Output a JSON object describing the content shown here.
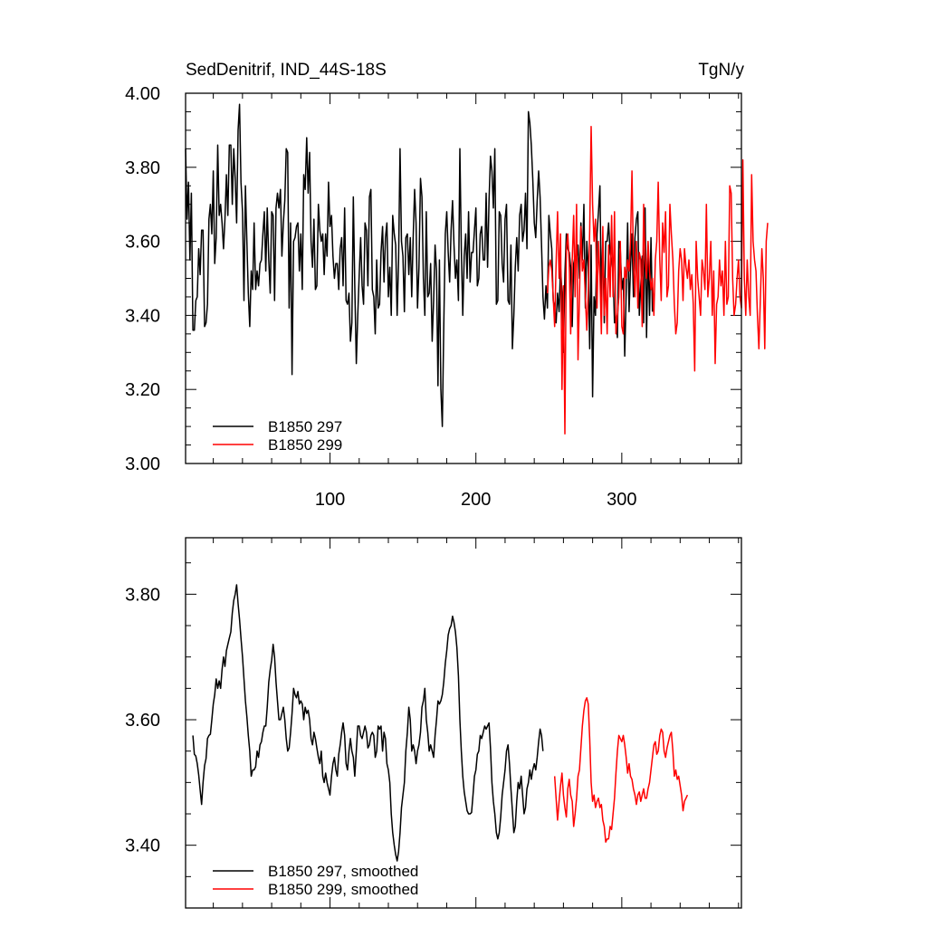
{
  "chart_data": [
    {
      "type": "line",
      "title": "SedDenitrif, IND_44S-18S",
      "units": "TgN/y",
      "xlim": [
        1,
        382
      ],
      "ylim": [
        3.0,
        4.0
      ],
      "x_ticks": [
        100,
        200,
        300
      ],
      "y_ticks": [
        "3.00",
        "3.20",
        "3.40",
        "3.60",
        "3.80",
        "4.00"
      ],
      "legend": [
        "B1850 297",
        "B1850 299"
      ],
      "series": [
        {
          "name": "B1850 297",
          "color": "#000000",
          "x_start": 1,
          "values": [
            3.85,
            3.66,
            3.76,
            3.55,
            3.73,
            3.36,
            3.36,
            3.44,
            3.45,
            3.58,
            3.51,
            3.63,
            3.63,
            3.37,
            3.38,
            3.43,
            3.66,
            3.7,
            3.62,
            3.79,
            3.54,
            3.61,
            3.86,
            3.67,
            3.7,
            3.65,
            3.58,
            3.66,
            3.78,
            3.67,
            3.86,
            3.86,
            3.7,
            3.85,
            3.77,
            3.65,
            3.9,
            3.97,
            3.76,
            3.68,
            3.44,
            3.75,
            3.6,
            3.46,
            3.37,
            3.52,
            3.47,
            3.65,
            3.47,
            3.52,
            3.48,
            3.54,
            3.55,
            3.62,
            3.68,
            3.52,
            3.69,
            3.55,
            3.46,
            3.68,
            3.67,
            3.44,
            3.69,
            3.73,
            3.69,
            3.74,
            3.56,
            3.65,
            3.71,
            3.85,
            3.84,
            3.42,
            3.65,
            3.24,
            3.6,
            3.61,
            3.64,
            3.65,
            3.52,
            3.62,
            3.47,
            3.78,
            3.74,
            3.88,
            3.73,
            3.84,
            3.6,
            3.53,
            3.66,
            3.47,
            3.48,
            3.7,
            3.63,
            3.6,
            3.62,
            3.51,
            3.62,
            3.56,
            3.76,
            3.64,
            3.67,
            3.56,
            3.5,
            3.54,
            3.54,
            3.47,
            3.58,
            3.61,
            3.48,
            3.69,
            3.44,
            3.43,
            3.46,
            3.33,
            3.38,
            3.72,
            3.48,
            3.27,
            3.4,
            3.51,
            3.61,
            3.48,
            3.43,
            3.65,
            3.63,
            3.48,
            3.72,
            3.74,
            3.47,
            3.45,
            3.35,
            3.55,
            3.42,
            3.43,
            3.57,
            3.64,
            3.49,
            3.61,
            3.65,
            3.45,
            3.53,
            3.4,
            3.67,
            3.62,
            3.59,
            3.4,
            3.55,
            3.85,
            3.6,
            3.56,
            3.41,
            3.61,
            3.62,
            3.51,
            3.61,
            3.45,
            3.61,
            3.74,
            3.65,
            3.42,
            3.53,
            3.77,
            3.72,
            3.5,
            3.4,
            3.68,
            3.45,
            3.46,
            3.54,
            3.33,
            3.44,
            3.59,
            3.52,
            3.21,
            3.55,
            3.2,
            3.1,
            3.37,
            3.62,
            3.68,
            3.57,
            3.49,
            3.63,
            3.71,
            3.59,
            3.5,
            3.55,
            3.44,
            3.85,
            3.58,
            3.4,
            3.56,
            3.62,
            3.5,
            3.68,
            3.49,
            3.57,
            3.57,
            3.63,
            3.69,
            3.48,
            3.5,
            3.62,
            3.64,
            3.55,
            3.55,
            3.73,
            3.53,
            3.71,
            3.83,
            3.79,
            3.69,
            3.85,
            3.43,
            3.44,
            3.68,
            3.67,
            3.54,
            3.49,
            3.66,
            3.7,
            3.44,
            3.43,
            3.59,
            3.31,
            3.4,
            3.53,
            3.61,
            3.52,
            3.67,
            3.7,
            3.6,
            3.63,
            3.73,
            3.58,
            3.95,
            3.92,
            3.86,
            3.77,
            3.65,
            3.61,
            3.71,
            3.79,
            3.72,
            3.59,
            3.45,
            3.39,
            3.48,
            3.42,
            3.67,
            3.62,
            3.58,
            3.44,
            3.42,
            3.38,
            3.46,
            3.41,
            3.53,
            3.46,
            3.3,
            3.51,
            3.62,
            3.58,
            3.57,
            3.53,
            3.37,
            3.54,
            3.56,
            3.55,
            3.59,
            3.5,
            3.65,
            3.55,
            3.7,
            3.42,
            3.6,
            3.53,
            3.31,
            3.59,
            3.18,
            3.45,
            3.4,
            3.62,
            3.68,
            3.75,
            3.45,
            3.6,
            3.38,
            3.6,
            3.6,
            3.65,
            3.57,
            3.55,
            3.52,
            3.38,
            3.4,
            3.34,
            3.6,
            3.58,
            3.47,
            3.5,
            3.29,
            3.46,
            3.65,
            3.41,
            3.53,
            3.62,
            3.45,
            3.61,
            3.66,
            3.68,
            3.4,
            3.48,
            3.56,
            3.38,
            3.69,
            3.34,
            3.58,
            3.4,
            3.61,
            3.41
          ]
        },
        {
          "name": "B1850 299",
          "color": "#ff0000",
          "x_start": 249,
          "values": [
            3.46,
            3.53,
            3.55,
            3.52,
            3.45,
            3.37,
            3.54,
            3.68,
            3.5,
            3.62,
            3.2,
            3.48,
            3.08,
            3.58,
            3.62,
            3.54,
            3.35,
            3.55,
            3.67,
            3.45,
            3.7,
            3.28,
            3.45,
            3.64,
            3.52,
            3.55,
            3.45,
            3.36,
            3.46,
            3.63,
            3.91,
            3.7,
            3.6,
            3.66,
            3.42,
            3.6,
            3.51,
            3.35,
            3.64,
            3.4,
            3.5,
            3.35,
            3.59,
            3.45,
            3.67,
            3.45,
            3.68,
            3.35,
            3.4,
            3.45,
            3.6,
            3.37,
            3.35,
            3.53,
            3.5,
            3.55,
            3.52,
            3.6,
            3.79,
            3.55,
            3.45,
            3.6,
            3.42,
            3.57,
            3.55,
            3.37,
            3.7,
            3.55,
            3.5,
            3.6,
            3.52,
            3.47,
            3.5,
            3.4,
            3.55,
            3.6,
            3.76,
            3.55,
            3.44,
            3.65,
            3.57,
            3.68,
            3.45,
            3.48,
            3.7,
            3.62,
            3.55,
            3.43,
            3.35,
            3.38,
            3.52,
            3.58,
            3.55,
            3.44,
            3.58,
            3.53,
            3.5,
            3.55,
            3.47,
            3.51,
            3.43,
            3.25,
            3.6,
            3.5,
            3.45,
            3.4,
            3.55,
            3.52,
            3.47,
            3.7,
            3.45,
            3.5,
            3.6,
            3.4,
            3.52,
            3.27,
            3.43,
            3.45,
            3.55,
            3.48,
            3.52,
            3.4,
            3.6,
            3.43,
            3.45,
            3.75,
            3.73,
            3.5,
            3.4,
            3.43,
            3.5,
            3.55,
            3.45,
            3.42,
            3.82,
            3.5,
            3.4,
            3.55,
            3.45,
            3.4,
            3.78,
            3.6,
            3.55,
            3.52,
            3.4,
            3.31,
            3.45,
            3.58,
            3.5,
            3.31,
            3.6,
            3.65
          ]
        }
      ]
    },
    {
      "type": "line",
      "title": "",
      "xlim": [
        1,
        382
      ],
      "ylim": [
        3.3,
        3.89
      ],
      "y_ticks": [
        "3.40",
        "3.60",
        "3.80"
      ],
      "legend": [
        "B1850 297, smoothed",
        "B1850 299, smoothed"
      ],
      "series": [
        {
          "name": "B1850 297, smoothed",
          "color": "#000000",
          "x_start": 6,
          "values": [
            3.575,
            3.545,
            3.542,
            3.53,
            3.512,
            3.488,
            3.465,
            3.5,
            3.527,
            3.538,
            3.57,
            3.575,
            3.577,
            3.6,
            3.625,
            3.64,
            3.665,
            3.65,
            3.662,
            3.65,
            3.68,
            3.7,
            3.685,
            3.71,
            3.72,
            3.73,
            3.74,
            3.77,
            3.79,
            3.8,
            3.815,
            3.785,
            3.76,
            3.73,
            3.7,
            3.665,
            3.63,
            3.605,
            3.575,
            3.55,
            3.51,
            3.52,
            3.52,
            3.525,
            3.55,
            3.54,
            3.56,
            3.565,
            3.58,
            3.59,
            3.59,
            3.62,
            3.66,
            3.68,
            3.695,
            3.72,
            3.7,
            3.66,
            3.63,
            3.6,
            3.6,
            3.61,
            3.62,
            3.6,
            3.57,
            3.55,
            3.555,
            3.58,
            3.61,
            3.65,
            3.64,
            3.635,
            3.645,
            3.625,
            3.63,
            3.625,
            3.6,
            3.62,
            3.61,
            3.615,
            3.6,
            3.57,
            3.56,
            3.58,
            3.57,
            3.555,
            3.54,
            3.53,
            3.55,
            3.51,
            3.5,
            3.515,
            3.5,
            3.49,
            3.48,
            3.51,
            3.53,
            3.54,
            3.52,
            3.51,
            3.545,
            3.56,
            3.58,
            3.595,
            3.575,
            3.53,
            3.52,
            3.55,
            3.57,
            3.55,
            3.54,
            3.51,
            3.55,
            3.59,
            3.59,
            3.575,
            3.57,
            3.58,
            3.59,
            3.58,
            3.555,
            3.56,
            3.575,
            3.58,
            3.575,
            3.54,
            3.55,
            3.59,
            3.585,
            3.59,
            3.55,
            3.58,
            3.57,
            3.53,
            3.52,
            3.5,
            3.45,
            3.42,
            3.4,
            3.385,
            3.375,
            3.39,
            3.42,
            3.46,
            3.48,
            3.5,
            3.55,
            3.58,
            3.62,
            3.6,
            3.55,
            3.56,
            3.55,
            3.53,
            3.55,
            3.56,
            3.58,
            3.62,
            3.63,
            3.65,
            3.6,
            3.58,
            3.55,
            3.56,
            3.55,
            3.54,
            3.575,
            3.6,
            3.63,
            3.625,
            3.63,
            3.64,
            3.66,
            3.69,
            3.71,
            3.735,
            3.745,
            3.75,
            3.765,
            3.755,
            3.74,
            3.715,
            3.67,
            3.6,
            3.55,
            3.51,
            3.485,
            3.47,
            3.455,
            3.45,
            3.45,
            3.452,
            3.48,
            3.51,
            3.52,
            3.545,
            3.55,
            3.575,
            3.57,
            3.58,
            3.59,
            3.585,
            3.59,
            3.595,
            3.555,
            3.5,
            3.47,
            3.45,
            3.42,
            3.41,
            3.42,
            3.445,
            3.48,
            3.5,
            3.52,
            3.55,
            3.56,
            3.53,
            3.49,
            3.455,
            3.42,
            3.43,
            3.47,
            3.5,
            3.49,
            3.51,
            3.48,
            3.45,
            3.46,
            3.49,
            3.5,
            3.52,
            3.505,
            3.52,
            3.53,
            3.52,
            3.54,
            3.565,
            3.585,
            3.575,
            3.55
          ]
        },
        {
          "name": "B1850 299, smoothed",
          "color": "#ff0000",
          "x_start": 254,
          "values": [
            3.51,
            3.475,
            3.44,
            3.47,
            3.495,
            3.515,
            3.48,
            3.46,
            3.445,
            3.49,
            3.505,
            3.48,
            3.47,
            3.43,
            3.45,
            3.475,
            3.51,
            3.52,
            3.555,
            3.59,
            3.615,
            3.63,
            3.635,
            3.625,
            3.57,
            3.5,
            3.47,
            3.48,
            3.46,
            3.47,
            3.475,
            3.46,
            3.465,
            3.44,
            3.43,
            3.405,
            3.41,
            3.41,
            3.43,
            3.425,
            3.45,
            3.475,
            3.515,
            3.55,
            3.575,
            3.57,
            3.565,
            3.575,
            3.56,
            3.54,
            3.515,
            3.53,
            3.51,
            3.505,
            3.49,
            3.48,
            3.465,
            3.48,
            3.485,
            3.47,
            3.48,
            3.49,
            3.475,
            3.475,
            3.49,
            3.5,
            3.52,
            3.54,
            3.56,
            3.565,
            3.545,
            3.55,
            3.575,
            3.585,
            3.58,
            3.55,
            3.54,
            3.555,
            3.565,
            3.575,
            3.58,
            3.55,
            3.51,
            3.52,
            3.505,
            3.51,
            3.495,
            3.48,
            3.455,
            3.47,
            3.475,
            3.48
          ]
        }
      ]
    }
  ]
}
